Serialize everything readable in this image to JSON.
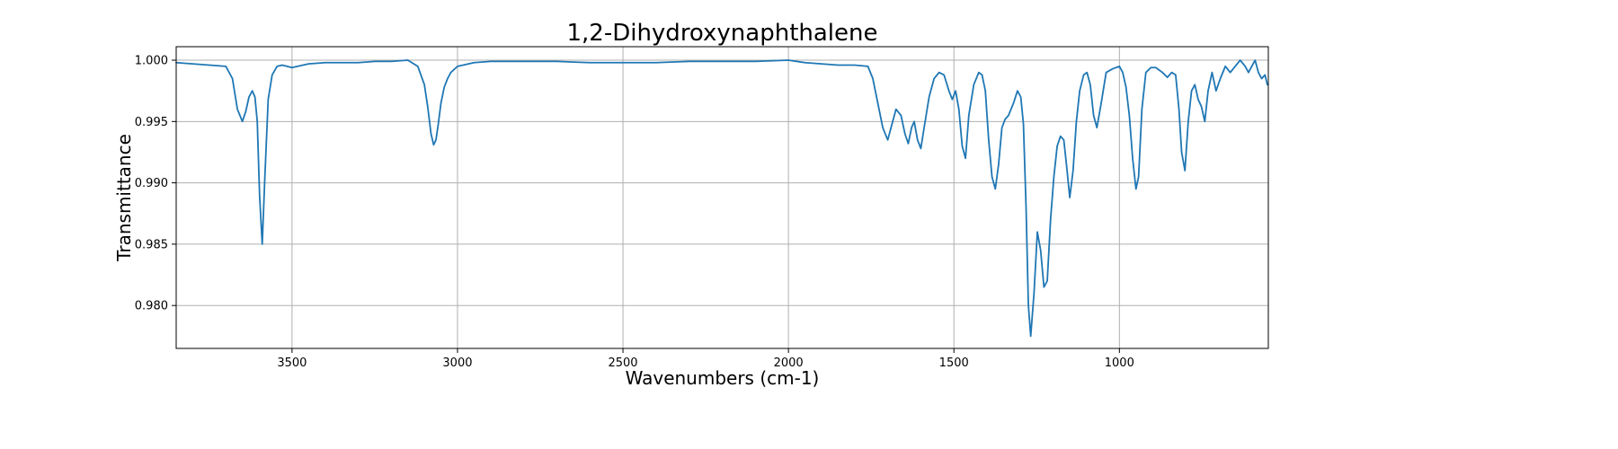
{
  "chart_data": {
    "type": "line",
    "title": "1,2-Dihydroxynaphthalene",
    "xlabel": "Wavenumbers (cm-1)",
    "ylabel": "Transmittance",
    "xlim": [
      3850,
      550
    ],
    "ylim": [
      0.9765,
      1.0011
    ],
    "x_reversed": true,
    "grid": true,
    "xticks": [
      3500,
      3000,
      2500,
      2000,
      1500,
      1000
    ],
    "xtick_labels": [
      "3500",
      "3000",
      "2500",
      "2000",
      "1500",
      "1000"
    ],
    "yticks": [
      0.98,
      0.985,
      0.99,
      0.995,
      1.0
    ],
    "ytick_labels": [
      "0.980",
      "0.985",
      "0.990",
      "0.995",
      "1.000"
    ],
    "line_color": "#1f77b4",
    "series": [
      {
        "x": [
          3850,
          3800,
          3750,
          3700,
          3680,
          3665,
          3650,
          3640,
          3630,
          3620,
          3612,
          3605,
          3598,
          3590,
          3582,
          3572,
          3560,
          3545,
          3530,
          3500,
          3450,
          3400,
          3350,
          3300,
          3250,
          3200,
          3150,
          3120,
          3100,
          3090,
          3080,
          3072,
          3065,
          3058,
          3050,
          3040,
          3030,
          3020,
          3000,
          2950,
          2900,
          2800,
          2700,
          2600,
          2500,
          2400,
          2300,
          2200,
          2100,
          2000,
          1950,
          1900,
          1850,
          1800,
          1760,
          1745,
          1730,
          1715,
          1700,
          1690,
          1675,
          1660,
          1648,
          1638,
          1628,
          1620,
          1610,
          1600,
          1590,
          1575,
          1560,
          1545,
          1530,
          1515,
          1505,
          1495,
          1485,
          1475,
          1465,
          1455,
          1440,
          1425,
          1415,
          1405,
          1395,
          1385,
          1375,
          1365,
          1355,
          1345,
          1335,
          1320,
          1308,
          1298,
          1290,
          1282,
          1275,
          1268,
          1258,
          1248,
          1238,
          1228,
          1218,
          1208,
          1198,
          1188,
          1178,
          1168,
          1160,
          1150,
          1140,
          1130,
          1120,
          1108,
          1098,
          1088,
          1078,
          1068,
          1055,
          1040,
          1020,
          1000,
          990,
          980,
          970,
          960,
          950,
          942,
          932,
          920,
          905,
          890,
          870,
          855,
          842,
          830,
          820,
          812,
          802,
          792,
          782,
          772,
          762,
          752,
          742,
          732,
          720,
          708,
          695,
          680,
          665,
          650,
          635,
          620,
          610,
          600,
          590,
          580,
          570,
          560,
          553
        ],
        "y": [
          0.9998,
          0.9997,
          0.9996,
          0.9995,
          0.9985,
          0.996,
          0.995,
          0.9958,
          0.997,
          0.9975,
          0.997,
          0.995,
          0.989,
          0.985,
          0.9905,
          0.9968,
          0.9988,
          0.9995,
          0.9996,
          0.9994,
          0.9997,
          0.9998,
          0.9998,
          0.9998,
          0.9999,
          0.9999,
          1.0,
          0.9995,
          0.998,
          0.9962,
          0.994,
          0.9931,
          0.9935,
          0.9948,
          0.9965,
          0.9978,
          0.9985,
          0.999,
          0.9995,
          0.9998,
          0.9999,
          0.9999,
          0.9999,
          0.9998,
          0.9998,
          0.9998,
          0.9999,
          0.9999,
          0.9999,
          1.0,
          0.9998,
          0.9997,
          0.9996,
          0.9996,
          0.9995,
          0.9985,
          0.9965,
          0.9945,
          0.9935,
          0.9945,
          0.996,
          0.9955,
          0.994,
          0.9932,
          0.9945,
          0.995,
          0.9935,
          0.9928,
          0.9945,
          0.997,
          0.9985,
          0.999,
          0.9988,
          0.9975,
          0.9968,
          0.9975,
          0.996,
          0.993,
          0.992,
          0.9955,
          0.998,
          0.999,
          0.9988,
          0.9975,
          0.9935,
          0.9905,
          0.9895,
          0.9915,
          0.9945,
          0.9952,
          0.9955,
          0.9965,
          0.9975,
          0.997,
          0.9948,
          0.988,
          0.98,
          0.9775,
          0.981,
          0.986,
          0.9845,
          0.9815,
          0.982,
          0.987,
          0.9905,
          0.993,
          0.9938,
          0.9935,
          0.9915,
          0.9888,
          0.991,
          0.995,
          0.9975,
          0.9988,
          0.999,
          0.998,
          0.9955,
          0.9945,
          0.9965,
          0.999,
          0.9993,
          0.9995,
          0.999,
          0.9978,
          0.9955,
          0.992,
          0.9895,
          0.9905,
          0.996,
          0.999,
          0.9994,
          0.9994,
          0.999,
          0.9986,
          0.999,
          0.9988,
          0.996,
          0.9925,
          0.991,
          0.995,
          0.9975,
          0.998,
          0.9968,
          0.9962,
          0.995,
          0.9975,
          0.999,
          0.9975,
          0.9985,
          0.9995,
          0.999,
          0.9995,
          1.0,
          0.9995,
          0.999,
          0.9995,
          1.0,
          0.999,
          0.9985,
          0.9988,
          0.998
        ]
      }
    ]
  }
}
